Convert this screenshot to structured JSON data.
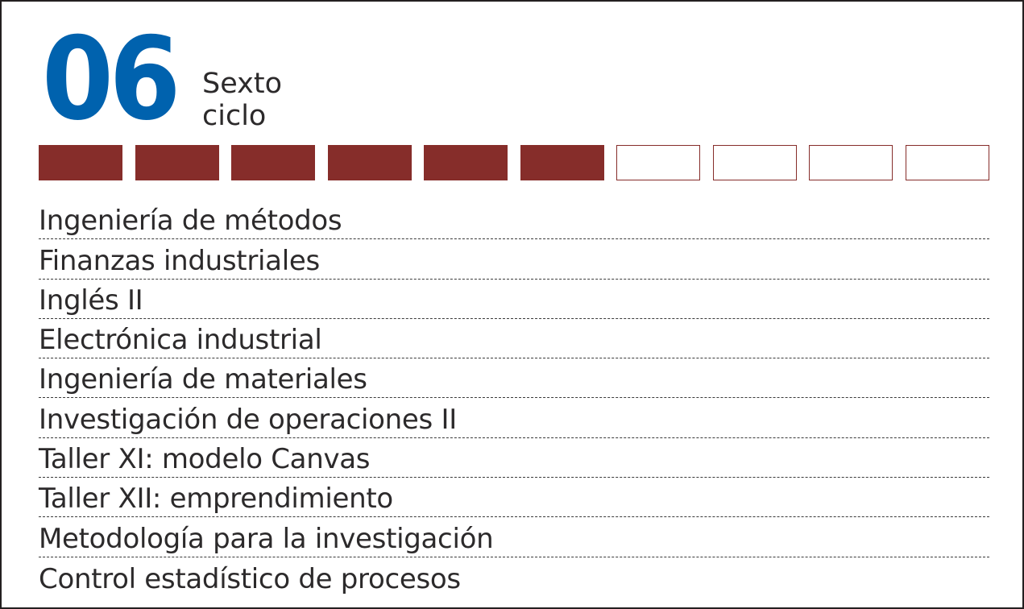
{
  "semester": {
    "number": "06",
    "label_line1": "Sexto",
    "label_line2": "ciclo"
  },
  "progress": {
    "completed": 6,
    "total": 10,
    "fill_color": "#862d2a"
  },
  "colors": {
    "number": "#0062ae",
    "text": "#2c2a2b"
  },
  "courses": [
    "Ingeniería de métodos",
    "Finanzas industriales",
    "Inglés II",
    "Electrónica industrial",
    "Ingeniería de materiales",
    "Investigación de operaciones II",
    "Taller XI: modelo Canvas",
    "Taller XII: emprendimiento",
    "Metodología para la investigación",
    "Control estadístico de procesos"
  ]
}
